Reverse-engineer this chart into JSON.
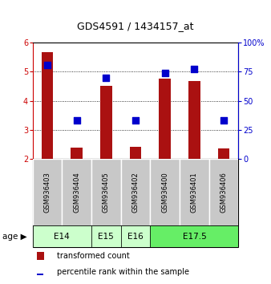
{
  "title": "GDS4591 / 1434157_at",
  "samples": [
    "GSM936403",
    "GSM936404",
    "GSM936405",
    "GSM936402",
    "GSM936400",
    "GSM936401",
    "GSM936406"
  ],
  "red_values": [
    5.68,
    2.38,
    4.52,
    2.43,
    4.75,
    4.68,
    2.36
  ],
  "blue_percentiles": [
    81,
    33,
    70,
    33,
    74,
    77,
    33
  ],
  "ylim_left": [
    2,
    6
  ],
  "ylim_right": [
    0,
    100
  ],
  "yticks_left": [
    2,
    3,
    4,
    5,
    6
  ],
  "yticks_right": [
    0,
    25,
    50,
    75,
    100
  ],
  "age_groups": [
    {
      "label": "E14",
      "span": [
        0,
        2
      ],
      "color": "#ccffcc"
    },
    {
      "label": "E15",
      "span": [
        2,
        3
      ],
      "color": "#ccffcc"
    },
    {
      "label": "E16",
      "span": [
        3,
        4
      ],
      "color": "#ccffcc"
    },
    {
      "label": "E17.5",
      "span": [
        4,
        7
      ],
      "color": "#66ee66"
    }
  ],
  "bar_color": "#aa1111",
  "dot_color": "#0000cc",
  "bar_width": 0.4,
  "dot_size": 30,
  "left_axis_color": "#cc0000",
  "right_axis_color": "#0000cc",
  "sample_box_color": "#c8c8c8",
  "legend_items": [
    {
      "color": "#aa1111",
      "label": "transformed count"
    },
    {
      "color": "#0000cc",
      "label": "percentile rank within the sample"
    }
  ]
}
